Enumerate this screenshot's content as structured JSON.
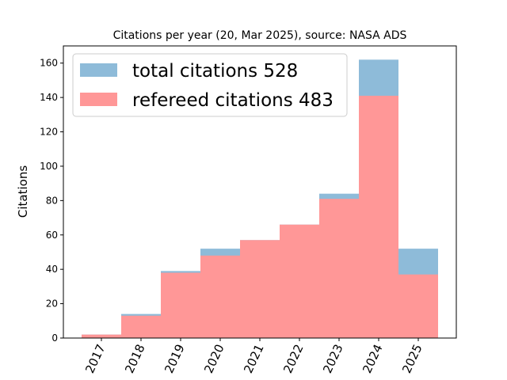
{
  "chart_data": {
    "type": "bar",
    "title": "Citations per year (20, Mar 2025), source: NASA ADS",
    "xlabel": "",
    "ylabel": "Citations",
    "categories": [
      "2017",
      "2018",
      "2019",
      "2020",
      "2021",
      "2022",
      "2023",
      "2024",
      "2025"
    ],
    "series": [
      {
        "name": "total citations 528",
        "values": [
          2,
          14,
          39,
          52,
          57,
          66,
          84,
          162,
          52
        ],
        "color": "#8ebbd9"
      },
      {
        "name": "refereed citations 483",
        "values": [
          2,
          13,
          38,
          48,
          57,
          66,
          81,
          141,
          37
        ],
        "color": "#ff9797"
      }
    ],
    "ylim": [
      0,
      170
    ],
    "yticks": [
      "0",
      "20",
      "40",
      "60",
      "80",
      "100",
      "120",
      "140",
      "160"
    ],
    "grid": false,
    "legend_position": "top-left",
    "overlay": true
  }
}
